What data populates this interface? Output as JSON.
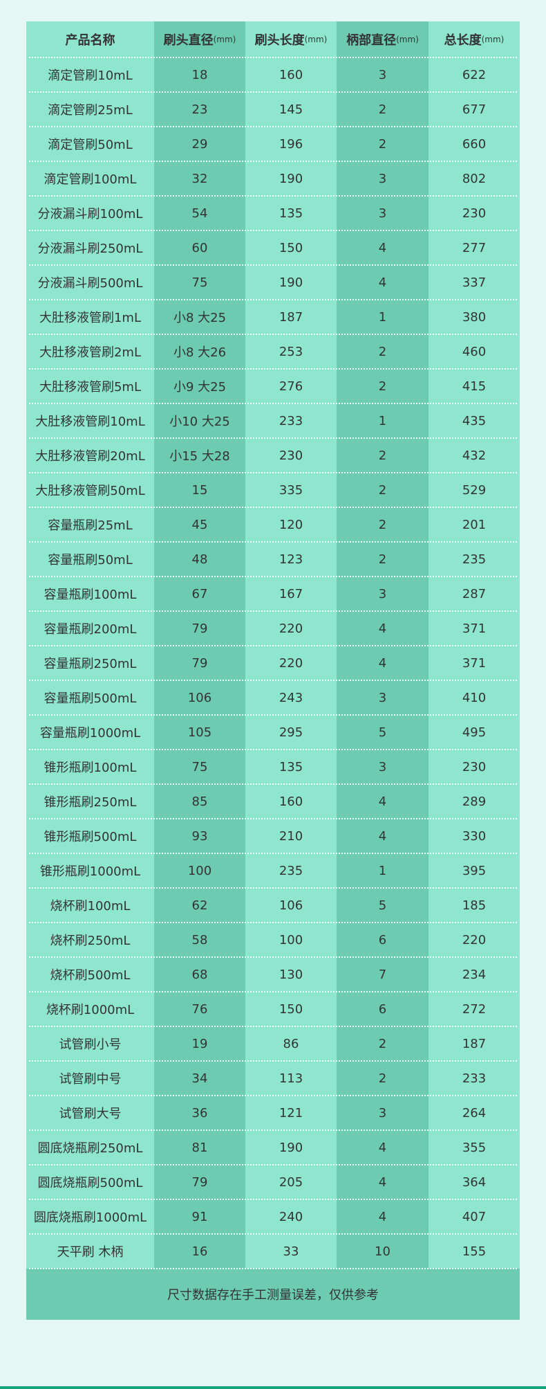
{
  "colors": {
    "background": "#e4f7f5",
    "light_column": "#8fe6cf",
    "dark_column": "#6ccbb1",
    "bottom_bar": "#13a37b"
  },
  "header": [
    {
      "label": "产品名称",
      "unit": ""
    },
    {
      "label": "刷头直径",
      "unit": "(mm)"
    },
    {
      "label": "刷头长度",
      "unit": "(mm)"
    },
    {
      "label": "柄部直径",
      "unit": "(mm)"
    },
    {
      "label": "总长度",
      "unit": "(mm)"
    }
  ],
  "rows": [
    [
      "滴定管刷10mL",
      "18",
      "160",
      "3",
      "622"
    ],
    [
      "滴定管刷25mL",
      "23",
      "145",
      "2",
      "677"
    ],
    [
      "滴定管刷50mL",
      "29",
      "196",
      "2",
      "660"
    ],
    [
      "滴定管刷100mL",
      "32",
      "190",
      "3",
      "802"
    ],
    [
      "分液漏斗刷100mL",
      "54",
      "135",
      "3",
      "230"
    ],
    [
      "分液漏斗刷250mL",
      "60",
      "150",
      "4",
      "277"
    ],
    [
      "分液漏斗刷500mL",
      "75",
      "190",
      "4",
      "337"
    ],
    [
      "大肚移液管刷1mL",
      "小8 大25",
      "187",
      "1",
      "380"
    ],
    [
      "大肚移液管刷2mL",
      "小8 大26",
      "253",
      "2",
      "460"
    ],
    [
      "大肚移液管刷5mL",
      "小9 大25",
      "276",
      "2",
      "415"
    ],
    [
      "大肚移液管刷10mL",
      "小10 大25",
      "233",
      "1",
      "435"
    ],
    [
      "大肚移液管刷20mL",
      "小15 大28",
      "230",
      "2",
      "432"
    ],
    [
      "大肚移液管刷50mL",
      "15",
      "335",
      "2",
      "529"
    ],
    [
      "容量瓶刷25mL",
      "45",
      "120",
      "2",
      "201"
    ],
    [
      "容量瓶刷50mL",
      "48",
      "123",
      "2",
      "235"
    ],
    [
      "容量瓶刷100mL",
      "67",
      "167",
      "3",
      "287"
    ],
    [
      "容量瓶刷200mL",
      "79",
      "220",
      "4",
      "371"
    ],
    [
      "容量瓶刷250mL",
      "79",
      "220",
      "4",
      "371"
    ],
    [
      "容量瓶刷500mL",
      "106",
      "243",
      "3",
      "410"
    ],
    [
      "容量瓶刷1000mL",
      "105",
      "295",
      "5",
      "495"
    ],
    [
      "锥形瓶刷100mL",
      "75",
      "135",
      "3",
      "230"
    ],
    [
      "锥形瓶刷250mL",
      "85",
      "160",
      "4",
      "289"
    ],
    [
      "锥形瓶刷500mL",
      "93",
      "210",
      "4",
      "330"
    ],
    [
      "锥形瓶刷1000mL",
      "100",
      "235",
      "1",
      "395"
    ],
    [
      "烧杯刷100mL",
      "62",
      "106",
      "5",
      "185"
    ],
    [
      "烧杯刷250mL",
      "58",
      "100",
      "6",
      "220"
    ],
    [
      "烧杯刷500mL",
      "68",
      "130",
      "7",
      "234"
    ],
    [
      "烧杯刷1000mL",
      "76",
      "150",
      "6",
      "272"
    ],
    [
      "试管刷小号",
      "19",
      "86",
      "2",
      "187"
    ],
    [
      "试管刷中号",
      "34",
      "113",
      "2",
      "233"
    ],
    [
      "试管刷大号",
      "36",
      "121",
      "3",
      "264"
    ],
    [
      "圆底烧瓶刷250mL",
      "81",
      "190",
      "4",
      "355"
    ],
    [
      "圆底烧瓶刷500mL",
      "79",
      "205",
      "4",
      "364"
    ],
    [
      "圆底烧瓶刷1000mL",
      "91",
      "240",
      "4",
      "407"
    ],
    [
      "天平刷 木柄",
      "16",
      "33",
      "10",
      "155"
    ]
  ],
  "footer": "尺寸数据存在手工测量误差，仅供参考"
}
